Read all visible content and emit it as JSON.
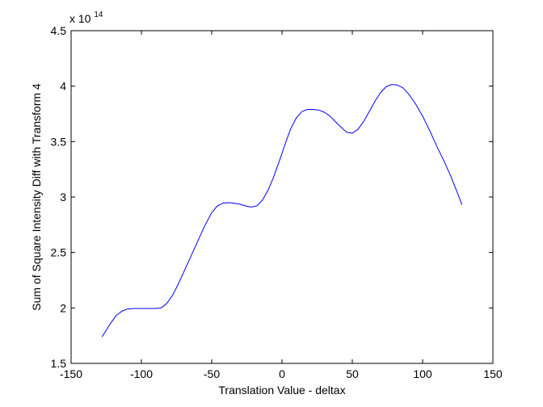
{
  "chart_data": {
    "type": "line",
    "title": "",
    "xlabel": "Translation Value - deltax",
    "ylabel": "Sum of Square Intensity Diff with Transform 4",
    "xlim": [
      -150,
      150
    ],
    "ylim": [
      1.5,
      4.5
    ],
    "xticks": [
      -150,
      -100,
      -50,
      0,
      50,
      100,
      150
    ],
    "yticks": [
      1.5,
      2,
      2.5,
      3,
      3.5,
      4,
      4.5
    ],
    "xtick_labels": [
      "-150",
      "-100",
      "-50",
      "0",
      "50",
      "100",
      "150"
    ],
    "ytick_labels": [
      "1.5",
      "2",
      "2.5",
      "3",
      "3.5",
      "4",
      "4.5"
    ],
    "y_multiplier_base": "x 10",
    "y_multiplier_exponent": "14",
    "grid": false,
    "legend": false,
    "line_color": "#0000ff",
    "axis_color": "#000000",
    "series": [
      {
        "x": [
          -128,
          -122,
          -118,
          -114,
          -110,
          -105,
          -100,
          -95,
          -90,
          -86,
          -82,
          -78,
          -74,
          -70,
          -65,
          -60,
          -55,
          -50,
          -46,
          -42,
          -38,
          -34,
          -30,
          -26,
          -22,
          -18,
          -14,
          -10,
          -6,
          -2,
          2,
          6,
          10,
          14,
          18,
          22,
          26,
          30,
          34,
          38,
          42,
          46,
          50,
          54,
          58,
          62,
          66,
          70,
          74,
          78,
          82,
          86,
          90,
          95,
          100,
          105,
          110,
          115,
          120,
          125,
          128
        ],
        "y": [
          1.74,
          1.86,
          1.93,
          1.97,
          1.99,
          1.995,
          1.995,
          1.995,
          1.995,
          2.0,
          2.04,
          2.11,
          2.21,
          2.32,
          2.46,
          2.6,
          2.74,
          2.86,
          2.92,
          2.945,
          2.95,
          2.945,
          2.935,
          2.92,
          2.91,
          2.92,
          2.97,
          3.06,
          3.18,
          3.32,
          3.47,
          3.61,
          3.71,
          3.77,
          3.79,
          3.79,
          3.785,
          3.765,
          3.73,
          3.68,
          3.63,
          3.585,
          3.575,
          3.61,
          3.68,
          3.77,
          3.86,
          3.94,
          3.995,
          4.015,
          4.01,
          3.985,
          3.93,
          3.84,
          3.73,
          3.6,
          3.46,
          3.33,
          3.19,
          3.03,
          2.93
        ]
      }
    ]
  }
}
